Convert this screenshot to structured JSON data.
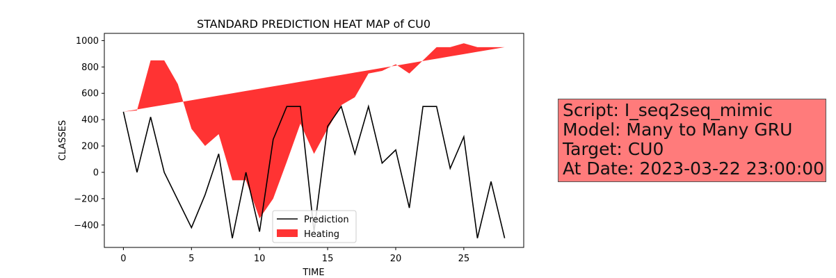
{
  "chart_data": {
    "type": "line",
    "title": "STANDARD PREDICTION HEAT MAP of CU0",
    "xlabel": "TIME",
    "ylabel": "CLASSES",
    "xlim": [
      -1.4,
      29.4
    ],
    "ylim": [
      -570,
      1055
    ],
    "x_ticks": [
      0,
      5,
      10,
      15,
      20,
      25
    ],
    "y_ticks": [
      -400,
      -200,
      0,
      200,
      400,
      600,
      800,
      1000
    ],
    "legend_position": "lower-center",
    "grid": false,
    "series": [
      {
        "name": "Prediction",
        "kind": "line",
        "color": "#000000",
        "x": [
          0,
          1,
          2,
          3,
          4,
          5,
          6,
          7,
          8,
          9,
          10,
          11,
          12,
          13,
          14,
          15,
          16,
          17,
          18,
          19,
          20,
          21,
          22,
          23,
          24,
          25,
          26,
          27,
          28
        ],
        "values": [
          460,
          0,
          420,
          0,
          -210,
          -420,
          -170,
          140,
          -500,
          0,
          -450,
          250,
          500,
          500,
          -450,
          350,
          500,
          140,
          500,
          70,
          170,
          -270,
          500,
          500,
          30,
          270,
          -500,
          -70,
          -500
        ]
      },
      {
        "name": "Heating",
        "kind": "fill_between",
        "color": "#ff0000",
        "opacity": 0.8,
        "x": [
          0,
          1,
          2,
          3,
          4,
          5,
          6,
          7,
          8,
          9,
          10,
          11,
          12,
          13,
          14,
          15,
          16,
          17,
          18,
          19,
          20,
          21,
          22,
          23,
          24,
          25,
          26,
          27,
          28
        ],
        "upper": [
          460,
          470,
          850,
          850,
          670,
          330,
          200,
          290,
          -60,
          -60,
          -350,
          -200,
          80,
          370,
          140,
          330,
          510,
          570,
          750,
          770,
          820,
          750,
          850,
          950,
          950,
          980,
          950,
          950,
          950
        ],
        "lower_line": {
          "x": [
            0,
            28
          ],
          "values": [
            460,
            950
          ]
        }
      }
    ]
  },
  "info_box": {
    "background": "#ff7b7b",
    "lines": [
      "Script: I_seq2seq_mimic",
      "Model: Many to Many GRU",
      "Target: CU0",
      "At Date: 2023-03-22 23:00:00"
    ]
  }
}
